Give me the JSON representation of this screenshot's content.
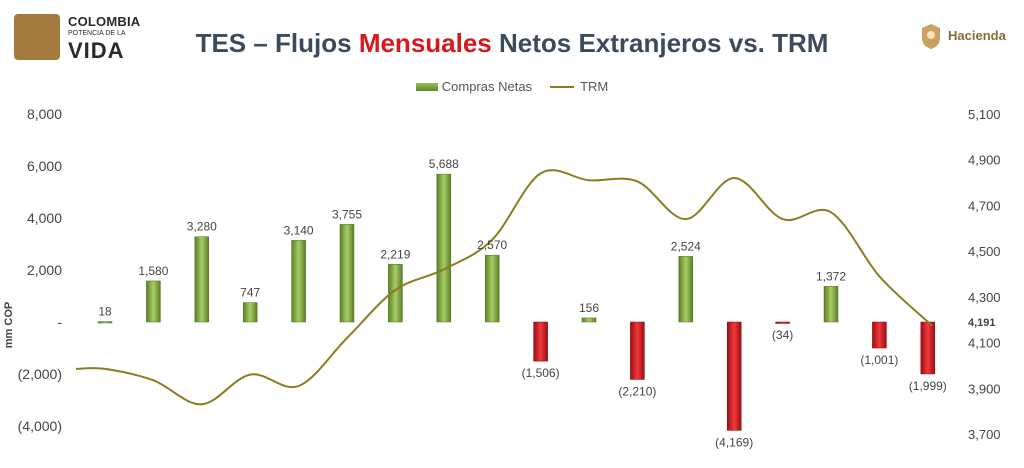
{
  "header": {
    "title_prefix": "TES – Flujos ",
    "title_highlight": "Mensuales",
    "title_suffix": " Netos Extranjeros vs. TRM",
    "logo_left": {
      "line1": "COLOMBIA",
      "line2": "POTENCIA DE LA",
      "line3": "VIDA"
    },
    "logo_right": "Hacienda"
  },
  "colors": {
    "positive_bar": "#7aa33e",
    "negative_bar": "#d7191c",
    "trm_line": "#8a7d1f",
    "title_highlight": "#d7191c"
  },
  "chart_data": {
    "type": "bar",
    "legend": [
      "Compras Netas",
      "TRM"
    ],
    "legend_position": "top-center",
    "grid": false,
    "ylabel": "mm COP",
    "ylim": [
      -4000,
      8000
    ],
    "y_ticks": [
      "(4,000)",
      "(2,000)",
      "-",
      "2,000",
      "4,000",
      "6,000",
      "8,000"
    ],
    "y2lim": [
      3700,
      5100
    ],
    "y2_ticks": [
      "3,700",
      "3,900",
      "4,100",
      "4,300",
      "4,500",
      "4,700",
      "4,900",
      "5,100"
    ],
    "series": [
      {
        "name": "Compras Netas",
        "type": "bar",
        "values": [
          18,
          1580,
          3280,
          747,
          3140,
          3755,
          2219,
          5688,
          2570,
          -1506,
          156,
          -2210,
          2524,
          -4169,
          -34,
          1372,
          -1001,
          -1999
        ],
        "labels": [
          "18",
          "1,580",
          "3,280",
          "747",
          "3,140",
          "3,755",
          "2,219",
          "5,688",
          "2,570",
          "(1,506)",
          "156",
          "(2,210)",
          "2,524",
          "(4,169)",
          "(34)",
          "1,372",
          "(1,001)",
          "(1,999)"
        ]
      },
      {
        "name": "TRM",
        "type": "line",
        "axis": "right",
        "values": [
          3985,
          3935,
          3830,
          3960,
          3910,
          4120,
          4330,
          4420,
          4550,
          4840,
          4810,
          4805,
          4640,
          4820,
          4640,
          4670,
          4390,
          4191
        ],
        "end_label": "4,191"
      }
    ]
  }
}
